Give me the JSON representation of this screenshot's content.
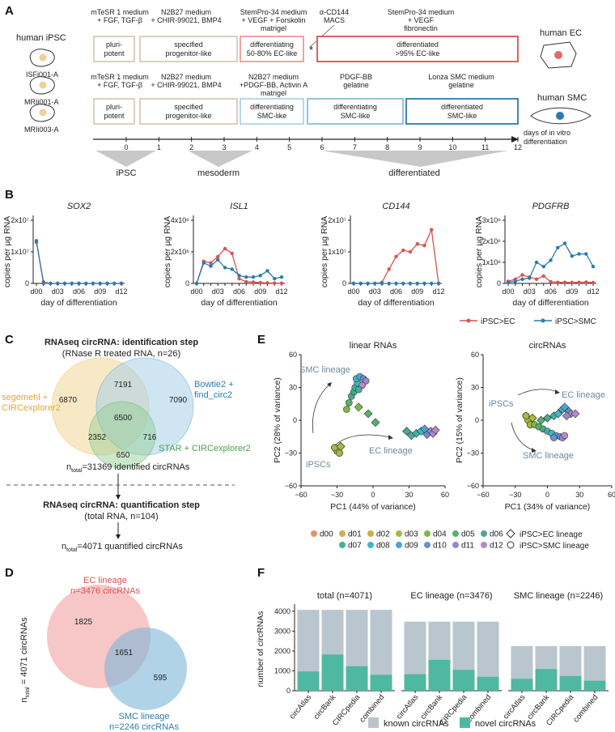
{
  "panels": {
    "A": "A",
    "B": "B",
    "C": "C",
    "D": "D",
    "E": "E",
    "F": "F"
  },
  "panel_a": {
    "ipsc_title": "human iPSC",
    "cell_lines": [
      "ISFi001-A",
      "MRIi001-A",
      "MRIi003-A"
    ],
    "ec_media": [
      {
        "line1": "mTeSR 1 medium",
        "line2": "+ FGF, TGF-β",
        "line3": ""
      },
      {
        "line1": "N2B27 medium",
        "line2": "+ CHIR-99021, BMP4",
        "line3": ""
      },
      {
        "line1": "StemPro-34 medium",
        "line2": "+ VEGF + Forskolin",
        "line3": "matrigel"
      },
      {
        "line1": "α-CD144",
        "line2": "MACS",
        "line3": ""
      },
      {
        "line1": "StemPro-34 medium",
        "line2": "+ VEGF",
        "line3": "fibronectin"
      }
    ],
    "ec_boxes": [
      {
        "line1": "pluri-",
        "line2": "potent"
      },
      {
        "line1": "specified",
        "line2": "progenitor-like"
      },
      {
        "line1": "differentiating",
        "line2": "50-80% EC-like"
      },
      {
        "line1": "differentiated",
        "line2": ">95% EC-like"
      }
    ],
    "asterisk": "*",
    "smc_media": [
      {
        "line1": "mTeSR 1 medium",
        "line2": "+ FGF, TGF-β",
        "line3": ""
      },
      {
        "line1": "N2B27 medium",
        "line2": "+ CHIR-99021, BMP4",
        "line3": ""
      },
      {
        "line1": "N2B27 medium",
        "line2": "+PDGF-BB, Activin A",
        "line3": "matrigel"
      },
      {
        "line1": "PDGF-BB",
        "line2": "gelatine",
        "line3": ""
      },
      {
        "line1": "Lonza SMC medium",
        "line2": "gelatine",
        "line3": ""
      }
    ],
    "smc_boxes": [
      {
        "line1": "pluri-",
        "line2": "potent"
      },
      {
        "line1": "specified",
        "line2": "progenitor-like"
      },
      {
        "line1": "differentiating",
        "line2": "SMC-like"
      },
      {
        "line1": "differentiating",
        "line2": "SMC-like"
      },
      {
        "line1": "differentiated",
        "line2": "SMC-like"
      }
    ],
    "human_ec": "human EC",
    "human_smc": "human SMC",
    "days": [
      "0",
      "1",
      "2",
      "3",
      "4",
      "5",
      "6",
      "7",
      "8",
      "9",
      "10",
      "11",
      "12"
    ],
    "days_label_1": "days of in vitro",
    "days_label_2": "differentiation",
    "stages": [
      "iPSC",
      "mesoderm",
      "differentiated"
    ],
    "colors": {
      "beige": "#cdc2a5",
      "ec": "#d9534f",
      "smc": "#2b7bae",
      "light_smc": "#7bb6d6"
    }
  },
  "panel_b": {
    "ylabel": "copies per µg RNA",
    "xlabel": "day of differentiation",
    "legend": [
      "iPSC>EC",
      "iPSC>SMC"
    ],
    "chart_data": [
      {
        "type": "line",
        "title": "SOX2",
        "x": [
          "d00",
          "d01",
          "d02",
          "d03",
          "d04",
          "d05",
          "d06",
          "d07",
          "d08",
          "d09",
          "d10",
          "d11",
          "d12"
        ],
        "yticks": [
          "0",
          "1x10⁷",
          "2x10⁷"
        ],
        "ylim": [
          0,
          20000000
        ],
        "series": [
          {
            "name": "iPSC>EC",
            "values": [
              13000000,
              500000,
              0,
              0,
              0,
              0,
              0,
              0,
              0,
              0,
              0,
              0,
              0
            ]
          },
          {
            "name": "iPSC>SMC",
            "values": [
              13500000,
              0,
              0,
              0,
              0,
              0,
              0,
              0,
              0,
              0,
              0,
              0,
              0
            ]
          }
        ]
      },
      {
        "type": "line",
        "title": "ISL1",
        "x": [
          "d00",
          "d01",
          "d02",
          "d03",
          "d04",
          "d05",
          "d06",
          "d07",
          "d08",
          "d09",
          "d10",
          "d11",
          "d12"
        ],
        "yticks": [
          "0",
          "2x10⁶",
          "4x10⁶"
        ],
        "ylim": [
          0,
          4000000
        ],
        "series": [
          {
            "name": "iPSC>EC",
            "values": [
              0,
              1400000,
              1300000,
              1700000,
              2200000,
              1900000,
              300000,
              100000,
              80000,
              50000,
              30000,
              20000,
              10000
            ]
          },
          {
            "name": "iPSC>SMC",
            "values": [
              0,
              1300000,
              1100000,
              1500000,
              1000000,
              900000,
              500000,
              400000,
              400000,
              500000,
              800000,
              300000,
              400000
            ]
          }
        ]
      },
      {
        "type": "line",
        "title": "CD144",
        "x": [
          "d00",
          "d01",
          "d02",
          "d03",
          "d04",
          "d05",
          "d06",
          "d07",
          "d08",
          "d09",
          "d10",
          "d11",
          "d12"
        ],
        "yticks": [
          "0",
          "1x10⁷",
          "2x10⁷"
        ],
        "ylim": [
          0,
          20000000
        ],
        "series": [
          {
            "name": "iPSC>EC",
            "values": [
              0,
              0,
              0,
              0,
              300000,
              4500000,
              8500000,
              10500000,
              10000000,
              12500000,
              12000000,
              17000000,
              0
            ]
          },
          {
            "name": "iPSC>SMC",
            "values": [
              0,
              0,
              0,
              0,
              0,
              0,
              0,
              0,
              0,
              0,
              0,
              0,
              0
            ]
          }
        ]
      },
      {
        "type": "line",
        "title": "PDGFRB",
        "x": [
          "d00",
          "d01",
          "d02",
          "d03",
          "d04",
          "d05",
          "d06",
          "d07",
          "d08",
          "d09",
          "d10",
          "d11",
          "d12"
        ],
        "yticks": [
          "0",
          "1x10⁶",
          "2x10⁶",
          "3x10⁶"
        ],
        "ylim": [
          0,
          3000000
        ],
        "series": [
          {
            "name": "iPSC>EC",
            "values": [
              100000,
              200000,
              400000,
              300000,
              200000,
              350000,
              80000,
              50000,
              50000,
              40000,
              50000,
              60000,
              40000
            ]
          },
          {
            "name": "iPSC>SMC",
            "values": [
              50000,
              100000,
              200000,
              250000,
              1000000,
              800000,
              1100000,
              1700000,
              1900000,
              1300000,
              1400000,
              1400000,
              800000
            ]
          }
        ]
      }
    ]
  },
  "panel_c": {
    "title1": "RNAseq circRNA: identification step",
    "title2": "(RNase R treated RNA, n=26)",
    "label_segemehl_1": "segemehl +",
    "label_segemehl_2": "CIRCexplorer2",
    "label_bowtie_1": "Bowtie2 +",
    "label_bowtie_2": "find_circ2",
    "label_star": "STAR + CIRCexplorer2",
    "counts": [
      "6870",
      "7191",
      "7090",
      "6500",
      "2352",
      "716",
      "650"
    ],
    "ntotal_prefix": "n",
    "ntotal_sub": "total",
    "ntotal_ident": "=31369 identified circRNAs",
    "quant1": "RNAseq circRNA: quantification step",
    "quant2": "(total RNA, n=104)",
    "ntotal_quant": "=4071 quantified circRNAs",
    "colors": {
      "seg": "#e8b84c",
      "bow": "#4a9ccc",
      "star": "#5cb05c"
    }
  },
  "panel_d": {
    "ec_1": "EC lineage",
    "ec_2": "n=3476 circRNAs",
    "smc_1": "SMC lineage",
    "smc_2": "n=2246 circRNAs",
    "counts": [
      "1825",
      "1651",
      "595"
    ],
    "yl_prefix": "n",
    "yl_sub": "total",
    "yl_rest": " = 4071 circRNAs"
  },
  "panel_e": {
    "titles": [
      "linear RNAs",
      "circRNAs"
    ],
    "xlabels": [
      "PC1 (44% of variance)",
      "PC1 (34% of variance)"
    ],
    "ylabels": [
      "PC2 (28% of variance)",
      "PC2 (15% of variance)"
    ],
    "xticks": [
      "−60",
      "−30",
      "0",
      "30",
      "60"
    ],
    "yticks": [
      "60",
      "30",
      "0",
      "−30",
      "−60"
    ],
    "ann_left": [
      "SMC lineage",
      "EC lineage",
      "iPSCs"
    ],
    "ann_right": [
      "EC lineage",
      "iPSCs",
      "SMC lineage"
    ],
    "legend_days": [
      "d00",
      "d01",
      "d02",
      "d03",
      "d04",
      "d05",
      "d06",
      "d07",
      "d08",
      "d09",
      "d10",
      "d11",
      "d12"
    ],
    "day_colors": [
      "#e8925e",
      "#e0a84a",
      "#c9b040",
      "#a9b83e",
      "#7fb845",
      "#55b26a",
      "#47aa8a",
      "#42b09c",
      "#3eb7c5",
      "#4aa5d8",
      "#6b8fd3",
      "#9b86cc",
      "#b58ac9"
    ],
    "legend_shapes": [
      "iPSC>EC lineage",
      "iPSC>SMC lineage"
    ]
  },
  "panel_f": {
    "ylabel": "number of circRNAs",
    "legend": [
      "known circRNAs",
      "novel circRNAs"
    ],
    "colors": {
      "known": "#b9c6cd",
      "novel": "#4fb8a0"
    },
    "chart_data": [
      {
        "type": "bar",
        "title": "total (n=4071)",
        "categories": [
          "circAtlas",
          "circBank",
          "CIRCpedia",
          "combined"
        ],
        "yticks": [
          "0",
          "1000",
          "2000",
          "3000",
          "4000"
        ],
        "ylim": [
          0,
          4200
        ],
        "series": [
          {
            "name": "total",
            "values": [
              4071,
              4071,
              4071,
              4071
            ]
          },
          {
            "name": "novel circRNAs",
            "values": [
              970,
              1820,
              1230,
              800
            ]
          }
        ]
      },
      {
        "type": "bar",
        "title": "EC lineage (n=3476)",
        "categories": [
          "circAtlas",
          "circBank",
          "CIRCpedia",
          "combined"
        ],
        "ylim": [
          0,
          4200
        ],
        "series": [
          {
            "name": "total",
            "values": [
              3476,
              3476,
              3476,
              3476
            ]
          },
          {
            "name": "novel circRNAs",
            "values": [
              830,
              1550,
              1050,
              700
            ]
          }
        ]
      },
      {
        "type": "bar",
        "title": "SMC lineage (n=2246)",
        "categories": [
          "circAtlas",
          "circBank",
          "CIRCpedia",
          "combined"
        ],
        "ylim": [
          0,
          4200
        ],
        "series": [
          {
            "name": "total",
            "values": [
              2246,
              2246,
              2246,
              2246
            ]
          },
          {
            "name": "novel circRNAs",
            "values": [
              600,
              1090,
              740,
              500
            ]
          }
        ]
      }
    ]
  }
}
